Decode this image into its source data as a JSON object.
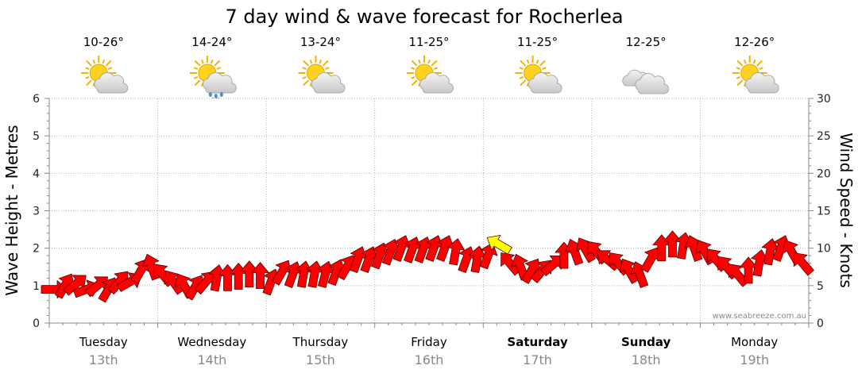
{
  "chart_data": {
    "type": "line",
    "title": "7 day wind & wave forecast for Rocherlea",
    "y_left": {
      "label": "Wave Height - Metres",
      "ticks": [
        "0",
        "1",
        "2",
        "3",
        "4",
        "5",
        "6"
      ],
      "range": [
        0,
        6
      ]
    },
    "y_right": {
      "label": "Wind Speed - Knots",
      "ticks": [
        "0",
        "5",
        "10",
        "15",
        "20",
        "25",
        "30"
      ],
      "range": [
        0,
        30
      ]
    },
    "grid": true,
    "days": [
      {
        "name": "Tuesday",
        "date": "13th",
        "temp": "10-26°",
        "icon": "sun-cloud-icon",
        "bold": false
      },
      {
        "name": "Wednesday",
        "date": "14th",
        "temp": "14-24°",
        "icon": "sun-cloud-rain-icon",
        "bold": false
      },
      {
        "name": "Thursday",
        "date": "15th",
        "temp": "13-24°",
        "icon": "sun-cloud-icon",
        "bold": false
      },
      {
        "name": "Friday",
        "date": "16th",
        "temp": "11-25°",
        "icon": "sun-cloud-icon",
        "bold": false
      },
      {
        "name": "Saturday",
        "date": "17th",
        "temp": "11-25°",
        "icon": "sun-cloud-icon",
        "bold": true
      },
      {
        "name": "Sunday",
        "date": "18th",
        "temp": "12-25°",
        "icon": "cloud-icon",
        "bold": true
      },
      {
        "name": "Monday",
        "date": "19th",
        "temp": "12-26°",
        "icon": "sun-cloud-icon",
        "bold": false
      }
    ],
    "series": [
      {
        "units": "knots",
        "marker": "wind-arrow",
        "colors": {
          "normal": "#ff0000",
          "highlight": "#ffff00",
          "outline": "#550000"
        },
        "x_day": [
          0.0,
          0.1,
          0.2,
          0.3,
          0.4,
          0.5,
          0.6,
          0.7,
          0.8,
          0.9,
          1.0,
          1.1,
          1.2,
          1.3,
          1.4,
          1.5,
          1.6,
          1.7,
          1.8,
          1.9,
          2.0,
          2.1,
          2.2,
          2.3,
          2.4,
          2.5,
          2.6,
          2.7,
          2.8,
          2.9,
          3.0,
          3.1,
          3.2,
          3.3,
          3.4,
          3.5,
          3.6,
          3.7,
          3.8,
          3.9,
          4.0,
          4.1,
          4.2,
          4.3,
          4.4,
          4.5,
          4.6,
          4.7,
          4.8,
          4.9,
          5.0,
          5.1,
          5.2,
          5.3,
          5.4,
          5.5,
          5.6,
          5.7,
          5.8,
          5.9,
          6.0,
          6.1,
          6.2,
          6.3,
          6.4,
          6.5,
          6.6,
          6.7,
          6.8,
          6.9
        ],
        "speed": [
          4.5,
          5.0,
          5.2,
          4.5,
          5.0,
          4.5,
          5.5,
          5.5,
          7.0,
          7.5,
          6.5,
          5.5,
          5.0,
          4.8,
          5.5,
          6.0,
          6.0,
          6.2,
          6.5,
          6.3,
          5.5,
          6.8,
          6.5,
          6.5,
          6.5,
          6.5,
          6.8,
          7.5,
          8.5,
          8.5,
          9.0,
          9.5,
          10.0,
          9.8,
          9.8,
          10.0,
          10.0,
          9.5,
          8.5,
          8.5,
          9.0,
          10.5,
          8.0,
          7.5,
          7.0,
          7.0,
          7.8,
          9.0,
          9.5,
          9.8,
          9.5,
          8.5,
          8.0,
          7.0,
          6.5,
          8.5,
          10.0,
          10.5,
          10.3,
          10.0,
          9.5,
          8.5,
          7.5,
          6.5,
          7.0,
          8.0,
          9.5,
          10.0,
          9.5,
          8.0
        ],
        "direction_deg": [
          0,
          300,
          320,
          340,
          320,
          300,
          310,
          330,
          300,
          250,
          230,
          235,
          240,
          300,
          310,
          280,
          270,
          270,
          270,
          270,
          290,
          300,
          290,
          280,
          280,
          285,
          290,
          300,
          290,
          290,
          290,
          290,
          290,
          290,
          290,
          290,
          290,
          280,
          290,
          280,
          290,
          210,
          230,
          250,
          300,
          310,
          320,
          270,
          250,
          240,
          230,
          220,
          230,
          240,
          250,
          300,
          270,
          270,
          280,
          250,
          240,
          230,
          230,
          230,
          270,
          280,
          280,
          290,
          240,
          230
        ],
        "highlight_index": [
          41
        ]
      }
    ],
    "credit": "www.seabreeze.com.au"
  }
}
